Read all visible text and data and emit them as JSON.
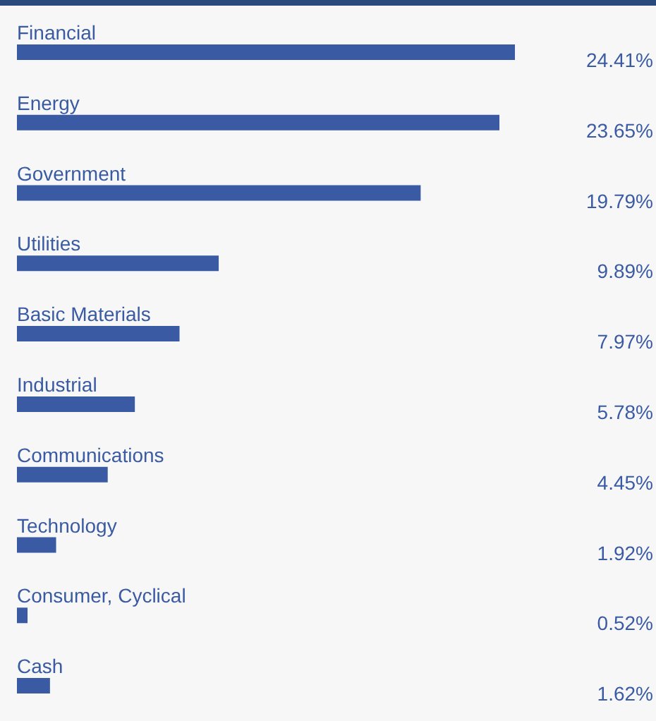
{
  "chart_data": {
    "type": "bar",
    "orientation": "horizontal",
    "categories": [
      "Financial",
      "Energy",
      "Government",
      "Utilities",
      "Basic Materials",
      "Industrial",
      "Communications",
      "Technology",
      "Consumer, Cyclical",
      "Cash"
    ],
    "values": [
      24.41,
      23.65,
      19.79,
      9.89,
      7.97,
      5.78,
      4.45,
      1.92,
      0.52,
      1.62
    ],
    "value_labels": [
      "24.41%",
      "23.65%",
      "19.79%",
      "9.89%",
      "7.97%",
      "5.78%",
      "4.45%",
      "1.92%",
      "0.52%",
      "1.62%"
    ],
    "color": "#3a5ba3"
  }
}
